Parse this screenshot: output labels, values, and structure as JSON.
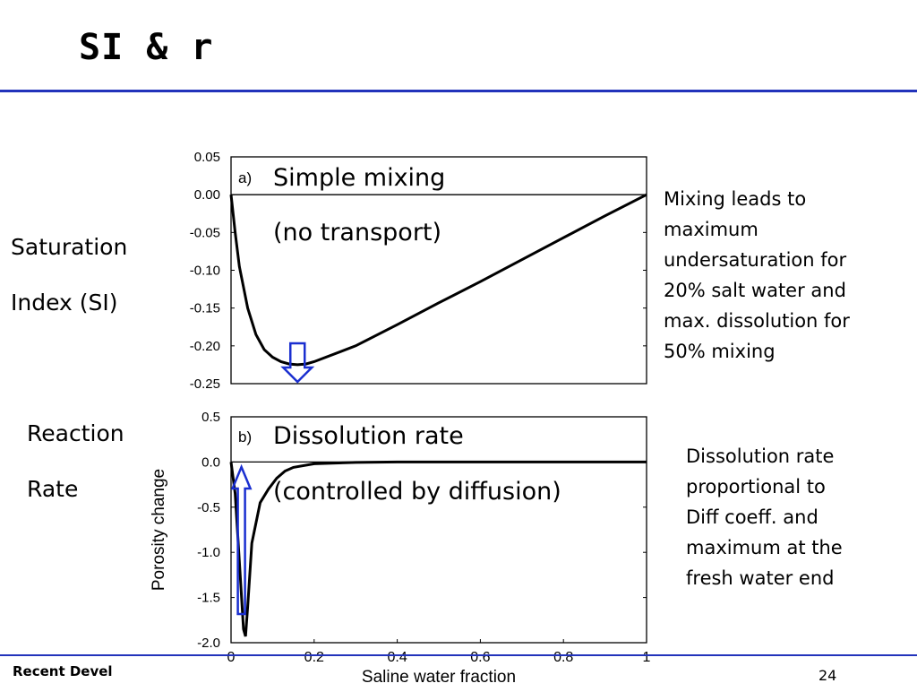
{
  "slide": {
    "title": "SI & r",
    "footer_left": "Recent Devel",
    "page_number": "24",
    "accent_color": "#2233bb"
  },
  "labels": {
    "si_line1": "Saturation",
    "si_line2": "Index (SI)",
    "rate_line1": "Reaction",
    "rate_line2": "Rate"
  },
  "notes": {
    "top": [
      "Mixing leads to",
      "maximum",
      "undersaturation for",
      "20% salt water and",
      "max. dissolution for",
      "50% mixing"
    ],
    "bottom": [
      "Dissolution rate",
      "proportional to",
      "Diff coeff. and",
      "maximum at the",
      "fresh water end"
    ]
  },
  "arrows": {
    "color": "#1a2fd0",
    "icon_top": "down-arrow-icon",
    "icon_bottom": "up-arrow-icon"
  },
  "chart_data": [
    {
      "type": "line",
      "panel": "a)",
      "title_line1": "Simple mixing",
      "title_line2": "(no transport)",
      "xlim": [
        0,
        1
      ],
      "ylim": [
        -0.25,
        0.05
      ],
      "yticks": [
        0.05,
        0.0,
        -0.05,
        -0.1,
        -0.15,
        -0.2,
        -0.25
      ],
      "ytick_labels": [
        "0.05",
        "0.00",
        "-0.05",
        "-0.10",
        "-0.15",
        "-0.20",
        "-0.25"
      ],
      "series": [
        {
          "x": [
            0,
            0.01,
            0.02,
            0.04,
            0.06,
            0.08,
            0.1,
            0.12,
            0.14,
            0.16,
            0.18,
            0.2,
            0.3,
            0.4,
            0.5,
            0.6,
            0.7,
            0.8,
            0.9,
            1.0
          ],
          "y": [
            0.0,
            -0.05,
            -0.095,
            -0.15,
            -0.185,
            -0.205,
            -0.215,
            -0.221,
            -0.224,
            -0.225,
            -0.224,
            -0.221,
            -0.2,
            -0.172,
            -0.143,
            -0.115,
            -0.086,
            -0.057,
            -0.028,
            0.0
          ]
        }
      ]
    },
    {
      "type": "line",
      "panel": "b)",
      "title_line1": "Dissolution rate",
      "title_line2": "(controlled by diffusion)",
      "xlabel": "Saline water fraction",
      "ylabel": "Porosity change",
      "xlim": [
        0,
        1
      ],
      "ylim": [
        -2.0,
        0.5
      ],
      "xticks": [
        0,
        0.2,
        0.4,
        0.6,
        0.8,
        1
      ],
      "xtick_labels": [
        "0",
        "0.2",
        "0.4",
        "0.6",
        "0.8",
        "1"
      ],
      "yticks": [
        0.5,
        0.0,
        -0.5,
        -1.0,
        -1.5,
        -2.0
      ],
      "ytick_labels": [
        "0.5",
        "0.0",
        "-0.5",
        "-1.0",
        "-1.5",
        "-2.0"
      ],
      "series": [
        {
          "x": [
            0,
            0.01,
            0.02,
            0.03,
            0.035,
            0.04,
            0.05,
            0.07,
            0.09,
            0.11,
            0.13,
            0.15,
            0.2,
            0.3,
            0.4,
            1.0
          ],
          "y": [
            0.0,
            -0.35,
            -1.1,
            -1.85,
            -1.93,
            -1.6,
            -0.9,
            -0.45,
            -0.3,
            -0.18,
            -0.1,
            -0.06,
            -0.02,
            -0.005,
            0.0,
            0.0
          ]
        }
      ]
    }
  ]
}
